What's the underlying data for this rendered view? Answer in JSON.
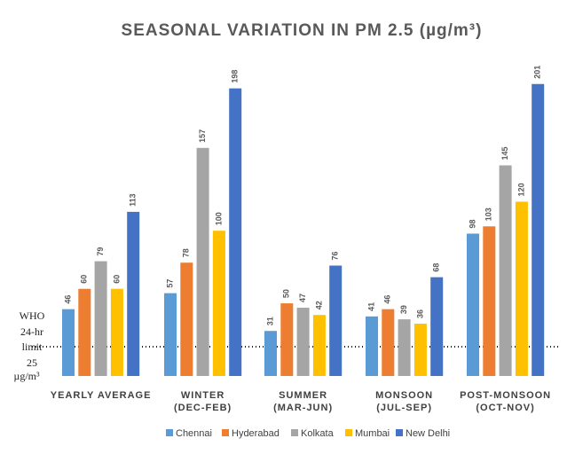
{
  "chart_data": {
    "type": "bar",
    "title": "SEASONAL VARIATION IN PM 2.5 (µg/m³)",
    "categories": [
      [
        "YEARLY AVERAGE"
      ],
      [
        "WINTER",
        "(DEC-FEB)"
      ],
      [
        "SUMMER",
        "(MAR-JUN)"
      ],
      [
        "MONSOON",
        "(JUL-SEP)"
      ],
      [
        "POST-MONSOON",
        "(OCT-NOV)"
      ]
    ],
    "series": [
      {
        "name": "Chennai",
        "color": "#5b9bd5",
        "values": [
          46,
          57,
          31,
          41,
          98
        ]
      },
      {
        "name": "Hyderabad",
        "color": "#ed7d31",
        "values": [
          60,
          78,
          50,
          46,
          103
        ]
      },
      {
        "name": "Kolkata",
        "color": "#a5a5a5",
        "values": [
          79,
          157,
          47,
          39,
          145
        ]
      },
      {
        "name": "Mumbai",
        "color": "#ffc000",
        "values": [
          60,
          100,
          42,
          36,
          120
        ]
      },
      {
        "name": "New Delhi",
        "color": "#4472c4",
        "values": [
          113,
          198,
          76,
          68,
          201
        ]
      }
    ],
    "ylim": [
      0,
      210
    ],
    "grid": false,
    "legend_position": "bottom",
    "reference_line": {
      "value": 25,
      "style": "dotted",
      "label": [
        "WHO",
        "24-hr",
        "limit",
        "25",
        "µg/m³"
      ]
    }
  }
}
